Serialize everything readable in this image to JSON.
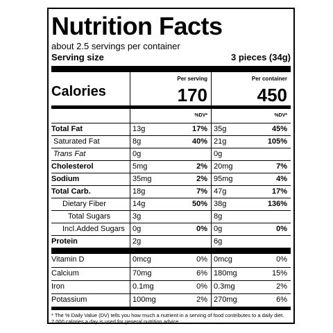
{
  "title": "Nutrition Facts",
  "servings": "about 2.5 servings per container",
  "serving_size_label": "Serving size",
  "serving_size_value": "3 pieces (34g)",
  "calories_label": "Calories",
  "per_serving_label": "Per serving",
  "per_container_label": "Per container",
  "calories_serving": "170",
  "calories_container": "450",
  "dv_label": "%DV*",
  "nutrients": [
    {
      "name": "Total Fat",
      "s_amt": "13g",
      "s_pct": "17%",
      "c_amt": "35g",
      "c_pct": "45%"
    },
    {
      "name": "Saturated Fat",
      "s_amt": "8g",
      "s_pct": "40%",
      "c_amt": "21g",
      "c_pct": "105%"
    },
    {
      "name": "Trans Fat",
      "s_amt": "0g",
      "s_pct": "",
      "c_amt": "0g",
      "c_pct": ""
    },
    {
      "name": "Cholesterol",
      "s_amt": "5mg",
      "s_pct": "2%",
      "c_amt": "20mg",
      "c_pct": "7%"
    },
    {
      "name": "Sodium",
      "s_amt": "35mg",
      "s_pct": "2%",
      "c_amt": "95mg",
      "c_pct": "4%"
    },
    {
      "name": "Total Carb.",
      "s_amt": "18g",
      "s_pct": "7%",
      "c_amt": "47g",
      "c_pct": "17%"
    },
    {
      "name": "Dietary Fiber",
      "s_amt": "14g",
      "s_pct": "50%",
      "c_amt": "38g",
      "c_pct": "136%"
    },
    {
      "name": "Total Sugars",
      "s_amt": "3g",
      "s_pct": "",
      "c_amt": "8g",
      "c_pct": ""
    },
    {
      "name": "Incl.Added Sugars",
      "s_amt": "0g",
      "s_pct": "0%",
      "c_amt": "0g",
      "c_pct": "0%"
    },
    {
      "name": "Protein",
      "s_amt": "2g",
      "s_pct": "",
      "c_amt": "6g",
      "c_pct": ""
    }
  ],
  "vitamins": [
    {
      "name": "Vitamin D",
      "s_amt": "0mcg",
      "s_pct": "0%",
      "c_amt": "0mcg",
      "c_pct": "0%"
    },
    {
      "name": "Calcium",
      "s_amt": "70mg",
      "s_pct": "6%",
      "c_amt": "180mg",
      "c_pct": "15%"
    },
    {
      "name": "Iron",
      "s_amt": "0.1mg",
      "s_pct": "0%",
      "c_amt": "0.3mg",
      "c_pct": "2%"
    },
    {
      "name": "Potassium",
      "s_amt": "100mg",
      "s_pct": "2%",
      "c_amt": "270mg",
      "c_pct": "6%"
    }
  ],
  "footnote": "* The % Daily Value (DV) tells you how much a nutrient in a serving of food contributes to a daily diet. 2,000 calories a day is used for general nutrition advice."
}
